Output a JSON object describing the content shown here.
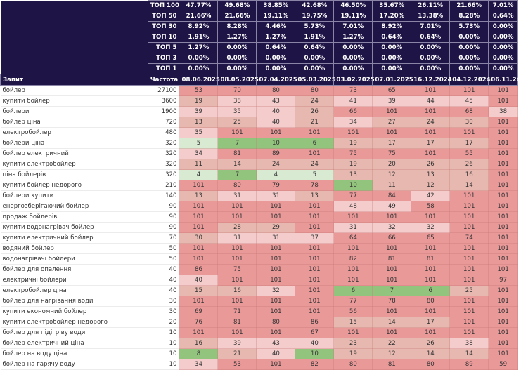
{
  "top_stats": [
    {
      "label": "ТОП 100",
      "values": [
        "47.77%",
        "49.68%",
        "38.85%",
        "42.68%",
        "46.50%",
        "35.67%",
        "26.11%",
        "21.66%",
        "7.01%"
      ]
    },
    {
      "label": "ТОП 50",
      "values": [
        "21.66%",
        "21.66%",
        "19.11%",
        "19.75%",
        "19.11%",
        "17.20%",
        "13.38%",
        "8.28%",
        "0.64%"
      ]
    },
    {
      "label": "ТОП 30",
      "values": [
        "8.92%",
        "8.28%",
        "4.46%",
        "5.73%",
        "7.01%",
        "8.92%",
        "7.01%",
        "5.73%",
        "0.00%"
      ]
    },
    {
      "label": "ТОП 10",
      "values": [
        "1.91%",
        "1.27%",
        "1.27%",
        "1.91%",
        "1.27%",
        "0.64%",
        "0.64%",
        "0.00%",
        "0.00%"
      ]
    },
    {
      "label": "ТОП 5",
      "values": [
        "1.27%",
        "0.00%",
        "0.64%",
        "0.64%",
        "0.00%",
        "0.00%",
        "0.00%",
        "0.00%",
        "0.00%"
      ]
    },
    {
      "label": "ТОП 3",
      "values": [
        "0.00%",
        "0.00%",
        "0.00%",
        "0.00%",
        "0.00%",
        "0.00%",
        "0.00%",
        "0.00%",
        "0.00%"
      ]
    },
    {
      "label": "ТОП 1",
      "values": [
        "0.00%",
        "0.00%",
        "0.00%",
        "0.00%",
        "0.00%",
        "0.00%",
        "0.00%",
        "0.00%",
        "0.00%"
      ]
    }
  ],
  "header": {
    "query_label": "Запит",
    "freq_label": "Частота",
    "dates": [
      "08.06.2025",
      "08.05.2025",
      "07.04.2025",
      "05.03.2025",
      "03.02.2025",
      "07.01.2025",
      "16.12.2024",
      "04.12.2024",
      "06.11.24"
    ]
  },
  "rows": [
    {
      "query": "бойлер",
      "freq": "27100",
      "positions": [
        53,
        70,
        80,
        80,
        73,
        65,
        101,
        101,
        101
      ]
    },
    {
      "query": "купити бойлер",
      "freq": "3600",
      "positions": [
        19,
        38,
        43,
        24,
        41,
        39,
        44,
        45,
        101
      ]
    },
    {
      "query": "бойлери",
      "freq": "1900",
      "positions": [
        39,
        35,
        40,
        26,
        66,
        101,
        101,
        68,
        38
      ]
    },
    {
      "query": "бойлер ціна",
      "freq": "720",
      "positions": [
        13,
        25,
        40,
        21,
        34,
        27,
        24,
        30,
        101
      ]
    },
    {
      "query": "електробойлер",
      "freq": "480",
      "positions": [
        35,
        101,
        101,
        101,
        101,
        101,
        101,
        101,
        101
      ]
    },
    {
      "query": "бойлери ціна",
      "freq": "320",
      "positions": [
        5,
        7,
        10,
        6,
        19,
        17,
        17,
        17,
        101
      ]
    },
    {
      "query": "бойлер електричний",
      "freq": "320",
      "positions": [
        34,
        81,
        89,
        101,
        75,
        75,
        101,
        55,
        101
      ]
    },
    {
      "query": "купити електробойлер",
      "freq": "320",
      "positions": [
        11,
        14,
        24,
        24,
        19,
        20,
        26,
        26,
        101
      ]
    },
    {
      "query": "ціна бойлерів",
      "freq": "320",
      "positions": [
        4,
        7,
        4,
        5,
        13,
        12,
        13,
        16,
        101
      ]
    },
    {
      "query": "купити бойлер недорого",
      "freq": "210",
      "positions": [
        101,
        80,
        79,
        78,
        10,
        11,
        12,
        14,
        101
      ]
    },
    {
      "query": "бойлери купити",
      "freq": "140",
      "positions": [
        13,
        31,
        31,
        13,
        77,
        84,
        42,
        101,
        101
      ]
    },
    {
      "query": "енергозберігаючий бойлер",
      "freq": "90",
      "positions": [
        101,
        101,
        101,
        101,
        48,
        49,
        58,
        101,
        101
      ]
    },
    {
      "query": "продаж бойлерів",
      "freq": "90",
      "positions": [
        101,
        101,
        101,
        101,
        101,
        101,
        101,
        101,
        101
      ]
    },
    {
      "query": "купити водонагрівач бойлер",
      "freq": "90",
      "positions": [
        101,
        28,
        29,
        101,
        31,
        32,
        32,
        101,
        101
      ]
    },
    {
      "query": "купити електричний бойлер",
      "freq": "70",
      "positions": [
        30,
        31,
        31,
        37,
        64,
        66,
        65,
        74,
        101
      ]
    },
    {
      "query": "водяний бойлер",
      "freq": "50",
      "positions": [
        101,
        101,
        101,
        101,
        101,
        101,
        101,
        101,
        101
      ]
    },
    {
      "query": "водонагрівачі бойлери",
      "freq": "50",
      "positions": [
        101,
        101,
        101,
        101,
        82,
        81,
        81,
        101,
        101
      ]
    },
    {
      "query": "бойлер для опалення",
      "freq": "40",
      "positions": [
        86,
        75,
        101,
        101,
        101,
        101,
        101,
        101,
        101
      ]
    },
    {
      "query": "електричні бойлери",
      "freq": "40",
      "positions": [
        40,
        101,
        101,
        101,
        101,
        101,
        101,
        101,
        97
      ]
    },
    {
      "query": "електробойлер ціна",
      "freq": "40",
      "positions": [
        15,
        16,
        32,
        101,
        6,
        7,
        6,
        25,
        101
      ]
    },
    {
      "query": "бойлер для нагрівання води",
      "freq": "30",
      "positions": [
        101,
        101,
        101,
        101,
        77,
        78,
        80,
        101,
        101
      ]
    },
    {
      "query": "купити економний бойлер",
      "freq": "30",
      "positions": [
        69,
        71,
        101,
        101,
        56,
        101,
        101,
        101,
        101
      ]
    },
    {
      "query": "купити електробойлер недорого",
      "freq": "20",
      "positions": [
        76,
        81,
        80,
        86,
        15,
        14,
        17,
        101,
        101
      ]
    },
    {
      "query": "бойлер для підігріву води",
      "freq": "10",
      "positions": [
        101,
        101,
        101,
        67,
        101,
        101,
        101,
        101,
        101
      ]
    },
    {
      "query": "бойлер електричний ціна",
      "freq": "10",
      "positions": [
        16,
        39,
        43,
        40,
        23,
        22,
        26,
        38,
        101
      ]
    },
    {
      "query": "бойлер на воду ціна",
      "freq": "10",
      "positions": [
        8,
        21,
        40,
        10,
        19,
        12,
        14,
        14,
        101
      ]
    },
    {
      "query": "бойлер на гарячу воду",
      "freq": "10",
      "positions": [
        34,
        53,
        101,
        82,
        80,
        81,
        80,
        89,
        59
      ]
    }
  ],
  "colors": {
    "header_bg": "#1f1446",
    "header_text": "#ffffff",
    "pos_top10": "#93c47d",
    "pos_top5_light": "#d9ead3",
    "pos_11_30": "#e6b8af",
    "pos_31_50": "#f4cccc",
    "pos_51_plus": "#ea9999"
  }
}
